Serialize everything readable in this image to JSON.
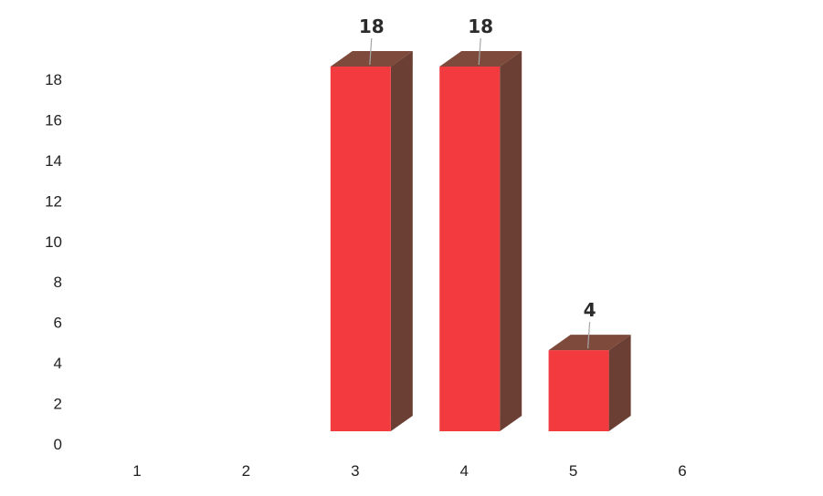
{
  "chart_data": {
    "type": "bar",
    "categories": [
      "1",
      "2",
      "3",
      "4",
      "5",
      "6"
    ],
    "values": [
      0,
      0,
      18,
      18,
      4,
      0
    ],
    "data_labels": [
      "",
      "",
      "18",
      "18",
      "4",
      ""
    ],
    "ylim": [
      0,
      18
    ],
    "y_ticks": [
      "0",
      "2",
      "4",
      "6",
      "8",
      "10",
      "12",
      "14",
      "16",
      "18"
    ],
    "grid": false,
    "legend": "none",
    "style": "3d-column",
    "colors": {
      "bar_front": "#f23a3f",
      "bar_side": "#6b3f33",
      "bar_top": "#7e4a3c",
      "leader_line": "#a6a6a6"
    }
  }
}
